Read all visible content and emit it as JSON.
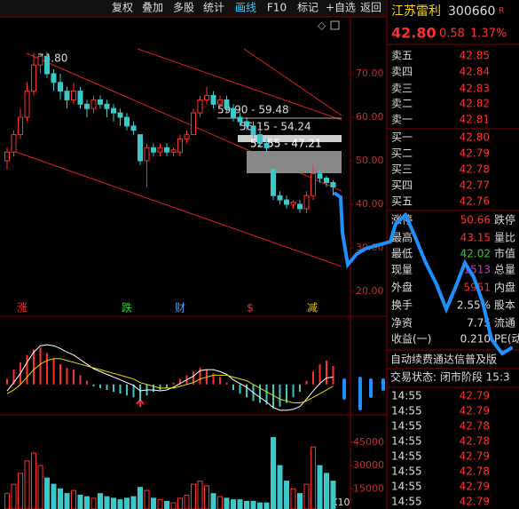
{
  "toolbar": {
    "buttons": [
      "复权",
      "叠加",
      "多股",
      "统计",
      "画线",
      "F10",
      "标记",
      "+自选",
      "返回"
    ],
    "active": "画线"
  },
  "chart": {
    "high_label": "74.80",
    "ranges": [
      "59.90 - 59.48",
      "56.15 - 54.24",
      "52.55 - 47.21"
    ],
    "markers": [
      "涨",
      "跌",
      "财",
      "$",
      "减"
    ],
    "ylim": [
      14.29,
      83.06
    ],
    "yticks": [
      {
        "value": 20,
        "label": "20.00"
      },
      {
        "value": 30,
        "label": "30.00"
      },
      {
        "value": 40,
        "label": "40.00"
      },
      {
        "value": 50,
        "label": "50.00"
      },
      {
        "value": 60,
        "label": "60.00"
      },
      {
        "value": 70,
        "label": "70.00"
      }
    ],
    "candles": [
      [
        50,
        52,
        53,
        48
      ],
      [
        52,
        56,
        57,
        51
      ],
      [
        56,
        60,
        62,
        55
      ],
      [
        60,
        66,
        68,
        59
      ],
      [
        66,
        72,
        74.8,
        65
      ],
      [
        72,
        74,
        74.8,
        70
      ],
      [
        74,
        70,
        75,
        69
      ],
      [
        70,
        68,
        71,
        66
      ],
      [
        68,
        66,
        70,
        64
      ],
      [
        66,
        64,
        67,
        62
      ],
      [
        64,
        66,
        68,
        63
      ],
      [
        66,
        63,
        67,
        62
      ],
      [
        63,
        62,
        64,
        60
      ],
      [
        62,
        64,
        65,
        61
      ],
      [
        64,
        63,
        65,
        62
      ],
      [
        63,
        62,
        64,
        60
      ],
      [
        62,
        61,
        63,
        59
      ],
      [
        61,
        60,
        62,
        58
      ],
      [
        60,
        58,
        61,
        57
      ],
      [
        58,
        57,
        59,
        56
      ],
      [
        56,
        50,
        56,
        49
      ],
      [
        50,
        53,
        54,
        44
      ],
      [
        53,
        52,
        54,
        51
      ],
      [
        52,
        53,
        54,
        51
      ],
      [
        53,
        52,
        54,
        51
      ],
      [
        52,
        52.5,
        53,
        51
      ],
      [
        52,
        55,
        56,
        51
      ],
      [
        55,
        56,
        57,
        54
      ],
      [
        56,
        61,
        62,
        56
      ],
      [
        61,
        64,
        65,
        60
      ],
      [
        64,
        65,
        67,
        63
      ],
      [
        65,
        63,
        66,
        62
      ],
      [
        63,
        64,
        65,
        62
      ],
      [
        64,
        62,
        65,
        61
      ],
      [
        62,
        60,
        63,
        59
      ],
      [
        60,
        59,
        61,
        58
      ],
      [
        59,
        58,
        60,
        57
      ],
      [
        58,
        56,
        59,
        55
      ],
      [
        56,
        54,
        57,
        53
      ],
      [
        54,
        53,
        55,
        52
      ],
      [
        48,
        42,
        48,
        41
      ],
      [
        42,
        41,
        43,
        40
      ],
      [
        41,
        40,
        42,
        39
      ],
      [
        40,
        40.5,
        41,
        39
      ],
      [
        40,
        39,
        41,
        38
      ],
      [
        39,
        42,
        43,
        38
      ],
      [
        42,
        47,
        49,
        41
      ],
      [
        47,
        46,
        48,
        45
      ],
      [
        46,
        45,
        46.5,
        44
      ],
      [
        45,
        44,
        45.5,
        42
      ]
    ]
  },
  "macd": {
    "ylim": [
      -1.65,
      3.7
    ],
    "hist": [
      0.3,
      0.8,
      1.2,
      1.6,
      1.9,
      2.0,
      1.7,
      1.4,
      1.1,
      0.9,
      0.8,
      0.5,
      0.2,
      -0.1,
      -0.2,
      -0.3,
      -0.4,
      -0.5,
      -0.6,
      -0.7,
      -0.9,
      -0.6,
      -0.4,
      -0.3,
      -0.2,
      0.1,
      0.3,
      0.5,
      0.7,
      0.9,
      0.8,
      0.6,
      0.4,
      0.1,
      -0.3,
      -0.5,
      -0.7,
      -0.9,
      -1.0,
      -1.1,
      -1.3,
      -1.2,
      -1.0,
      -0.7,
      -0.4,
      0.2,
      0.7,
      1.1,
      1.3,
      1.0
    ],
    "dif": [
      -0.35,
      0.1,
      0.6,
      1.2,
      1.75,
      2.1,
      2.15,
      2.1,
      1.95,
      1.75,
      1.6,
      1.35,
      1.1,
      0.85,
      0.7,
      0.55,
      0.4,
      0.25,
      0.1,
      -0.05,
      -0.35,
      -0.3,
      -0.3,
      -0.35,
      -0.3,
      -0.15,
      0.05,
      0.25,
      0.45,
      0.75,
      0.8,
      0.8,
      0.7,
      0.55,
      0.25,
      0.05,
      -0.15,
      -0.45,
      -0.7,
      -0.95,
      -1.25,
      -1.4,
      -1.4,
      -1.35,
      -1.2,
      -0.8,
      -0.35,
      0.05,
      0.35,
      0.4
    ],
    "dea": [
      -0.5,
      -0.3,
      0,
      0.4,
      0.8,
      1.1,
      1.3,
      1.4,
      1.4,
      1.3,
      1.2,
      1.1,
      1.0,
      0.9,
      0.8,
      0.7,
      0.6,
      0.5,
      0.4,
      0.3,
      0.1,
      0,
      -0.1,
      -0.2,
      -0.2,
      -0.2,
      -0.1,
      0,
      0.1,
      0.3,
      0.4,
      0.5,
      0.5,
      0.5,
      0.4,
      0.3,
      0.2,
      0,
      -0.2,
      -0.4,
      -0.6,
      -0.8,
      -0.9,
      -1.0,
      -1.0,
      -0.9,
      -0.7,
      -0.5,
      -0.3,
      -0.1
    ]
  },
  "volume": {
    "ylim": [
      2059,
      62647
    ],
    "yticks": [
      15000,
      30000,
      45000
    ],
    "unit": "X10",
    "values": [
      12000,
      18000,
      25000,
      33000,
      38000,
      30000,
      22000,
      18000,
      15000,
      12000,
      14000,
      11000,
      10000,
      9000,
      12000,
      10000,
      9000,
      8000,
      9000,
      10000,
      16000,
      14000,
      9000,
      8000,
      7000,
      6000,
      9000,
      11000,
      18000,
      20000,
      17000,
      12000,
      10000,
      9000,
      8000,
      8000,
      7000,
      7000,
      6000,
      6000,
      48000,
      30000,
      20000,
      15000,
      12000,
      18000,
      42000,
      30000,
      25000,
      20000
    ]
  },
  "quote": {
    "name": "江苏雷利",
    "code": "300660",
    "badge": "R",
    "price": "42.80",
    "change": "0.58",
    "pct": "1.37%",
    "book": [
      [
        "卖五",
        "42.85"
      ],
      [
        "卖四",
        "42.84"
      ],
      [
        "卖三",
        "42.83"
      ],
      [
        "卖二",
        "42.82"
      ],
      [
        "卖一",
        "42.81"
      ],
      [
        "买一",
        "42.80"
      ],
      [
        "买二",
        "42.79"
      ],
      [
        "买三",
        "42.78"
      ],
      [
        "买四",
        "42.77"
      ],
      [
        "买五",
        "42.76"
      ]
    ],
    "stats": [
      [
        "涨停",
        "50.66",
        "跌停"
      ],
      [
        "最高",
        "43.15",
        "量比"
      ],
      [
        "最低",
        "42.02",
        "市值"
      ],
      [
        "现量",
        "1513",
        "总量"
      ],
      [
        "外盘",
        "5951",
        "内盘"
      ],
      [
        "换手",
        "2.55%",
        "股本"
      ],
      [
        "净资",
        "7.75",
        "流通"
      ],
      [
        "收益(一)",
        "0.210",
        "PE(动"
      ]
    ],
    "banner": "自动续费通达信普及版",
    "status": "交易状态: 闭市阶段 15:3",
    "ticks": [
      [
        "14:55",
        "42.79"
      ],
      [
        "14:55",
        "42.79"
      ],
      [
        "14:55",
        "42.78"
      ],
      [
        "14:55",
        "42.78"
      ],
      [
        "14:55",
        "42.79"
      ],
      [
        "14:55",
        "42.78"
      ],
      [
        "14:55",
        "42.79"
      ],
      [
        "14:55",
        "42.79"
      ]
    ]
  }
}
